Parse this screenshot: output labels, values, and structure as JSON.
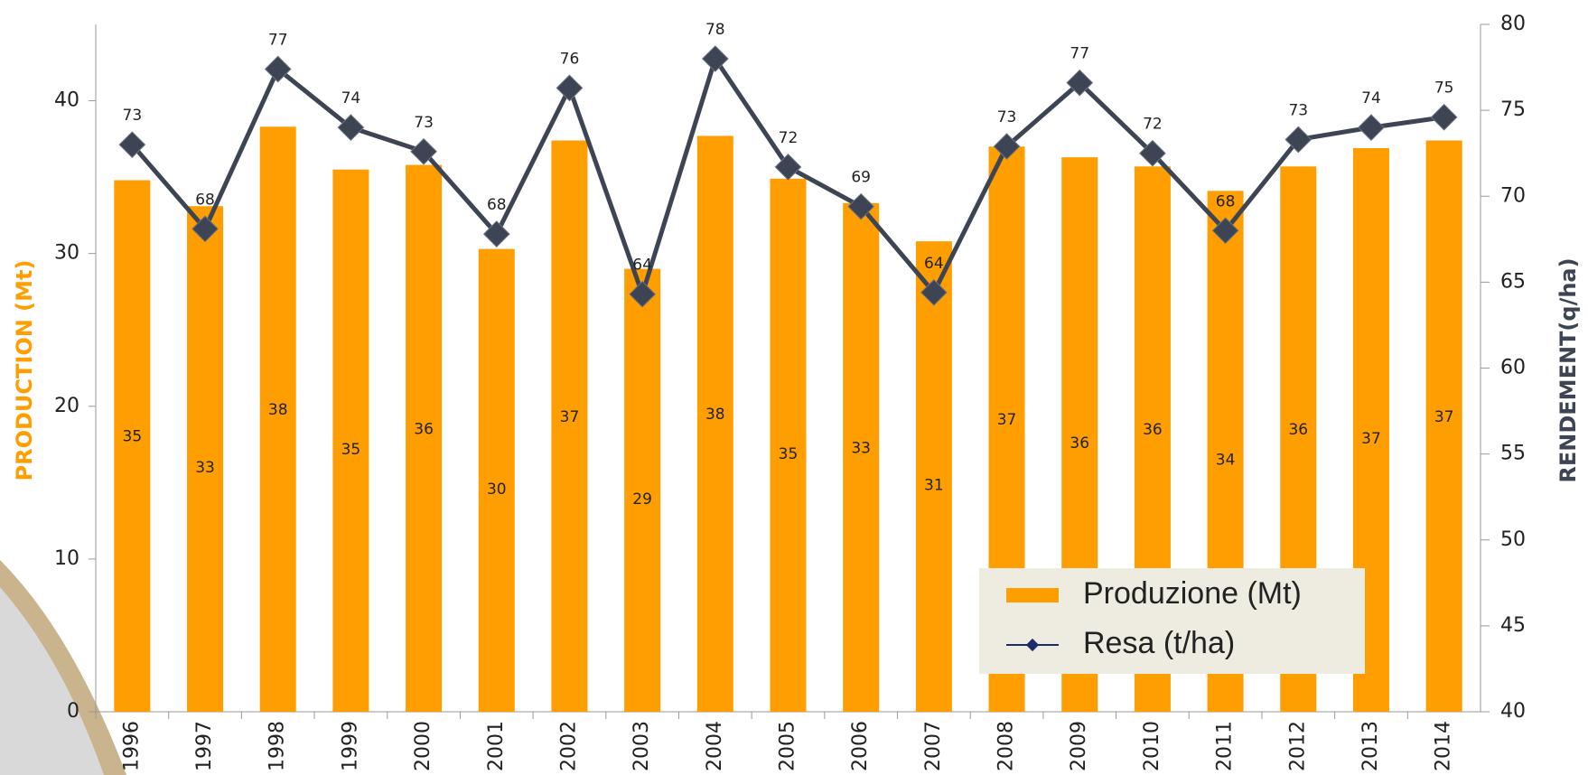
{
  "chart_data": {
    "type": "bar",
    "categories": [
      "1996",
      "1997",
      "1998",
      "1999",
      "2000",
      "2001",
      "2002",
      "2003",
      "2004",
      "2005",
      "2006",
      "2007",
      "2008",
      "2009",
      "2010",
      "2011",
      "2012",
      "2013",
      "2014"
    ],
    "series": [
      {
        "name": "Produzione (Mt)",
        "type": "bar",
        "color": "#ff9e00",
        "values": [
          34.8,
          33.1,
          38.3,
          35.5,
          35.8,
          30.3,
          37.4,
          29.0,
          37.7,
          34.9,
          33.3,
          30.8,
          37.0,
          36.3,
          35.7,
          34.1,
          35.7,
          36.9,
          37.4
        ],
        "value_labels": [
          "35",
          "33",
          "38",
          "35",
          "36",
          "30",
          "37",
          "29",
          "38",
          "35",
          "33",
          "31",
          "37",
          "36",
          "36",
          "34",
          "36",
          "37",
          "37"
        ]
      },
      {
        "name": "Resa (t/ha)",
        "type": "line",
        "axis": "y2",
        "color": "#3d4554",
        "values": [
          73.0,
          68.1,
          77.4,
          74.0,
          72.6,
          67.8,
          76.3,
          64.3,
          78.0,
          71.7,
          69.4,
          64.4,
          72.9,
          76.6,
          72.5,
          68.0,
          73.3,
          74.0,
          74.6
        ],
        "value_labels": [
          "73",
          "68",
          "77",
          "74",
          "73",
          "68",
          "76",
          "64",
          "78",
          "72",
          "69",
          "64",
          "73",
          "77",
          "72",
          "68",
          "73",
          "74",
          "75"
        ]
      }
    ],
    "ylabel": "PRODUCTION (Mt)",
    "y2label": "RENDEMENT(q/ha)",
    "ylim": [
      0,
      45
    ],
    "yticks": [
      0,
      10,
      20,
      30,
      40
    ],
    "y2lim": [
      40,
      80
    ],
    "y2ticks": [
      40,
      45,
      50,
      55,
      60,
      65,
      70,
      75,
      80
    ],
    "legend": "lower right"
  }
}
